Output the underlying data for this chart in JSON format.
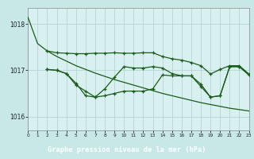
{
  "title": "Graphe pression niveau de la mer (hPa)",
  "bg_color": "#c8e8e8",
  "plot_bg": "#d8f0f0",
  "grid_color": "#b0d0d0",
  "line_color": "#1a5c1a",
  "label_bg": "#2d6e2d",
  "label_fg": "#ffffff",
  "xlim": [
    0,
    23
  ],
  "ylim": [
    1015.7,
    1018.35
  ],
  "yticks": [
    1016,
    1017,
    1018
  ],
  "xticks": [
    0,
    1,
    2,
    3,
    4,
    5,
    6,
    7,
    8,
    9,
    10,
    11,
    12,
    13,
    14,
    15,
    16,
    17,
    18,
    19,
    20,
    21,
    22,
    23
  ],
  "s1_x": [
    0,
    1,
    2,
    3,
    4,
    5,
    6,
    7,
    8,
    9,
    10,
    11,
    12,
    13,
    14,
    15,
    16,
    17,
    18,
    19,
    20,
    21,
    22,
    23
  ],
  "s1_y": [
    1018.15,
    1017.58,
    1017.42,
    1017.3,
    1017.2,
    1017.1,
    1017.02,
    1016.94,
    1016.87,
    1016.8,
    1016.74,
    1016.68,
    1016.62,
    1016.56,
    1016.5,
    1016.45,
    1016.4,
    1016.35,
    1016.3,
    1016.26,
    1016.22,
    1016.18,
    1016.15,
    1016.12
  ],
  "s2_x": [
    2,
    3,
    4,
    5,
    6,
    7,
    8,
    9,
    10,
    11,
    12,
    13,
    14,
    15,
    16,
    17,
    18,
    19,
    20,
    21,
    22,
    23
  ],
  "s2_y": [
    1017.42,
    1017.38,
    1017.37,
    1017.36,
    1017.36,
    1017.37,
    1017.37,
    1017.38,
    1017.37,
    1017.37,
    1017.38,
    1017.38,
    1017.3,
    1017.25,
    1017.22,
    1017.17,
    1017.1,
    1016.92,
    1017.02,
    1017.1,
    1017.1,
    1016.92
  ],
  "s3_x": [
    2,
    3,
    4,
    5,
    6,
    7,
    8,
    9,
    10,
    11,
    12,
    13,
    14,
    15,
    16,
    17,
    18,
    19,
    20,
    21,
    22,
    23
  ],
  "s3_y": [
    1017.02,
    1017.0,
    1016.93,
    1016.68,
    1016.55,
    1016.42,
    1016.6,
    1016.85,
    1017.08,
    1017.05,
    1017.05,
    1017.08,
    1017.05,
    1016.93,
    1016.88,
    1016.88,
    1016.65,
    1016.42,
    1016.45,
    1017.08,
    1017.08,
    1016.9
  ],
  "s4_x": [
    2,
    3,
    4,
    5,
    6,
    7,
    8,
    9,
    10,
    11,
    12,
    13,
    14,
    15,
    16,
    17,
    18,
    19,
    20,
    21,
    22,
    23
  ],
  "s4_y": [
    1017.02,
    1017.0,
    1016.93,
    1016.72,
    1016.45,
    1016.42,
    1016.45,
    1016.5,
    1016.55,
    1016.55,
    1016.55,
    1016.6,
    1016.9,
    1016.88,
    1016.88,
    1016.88,
    1016.7,
    1016.42,
    1016.45,
    1017.08,
    1017.08,
    1016.9
  ]
}
